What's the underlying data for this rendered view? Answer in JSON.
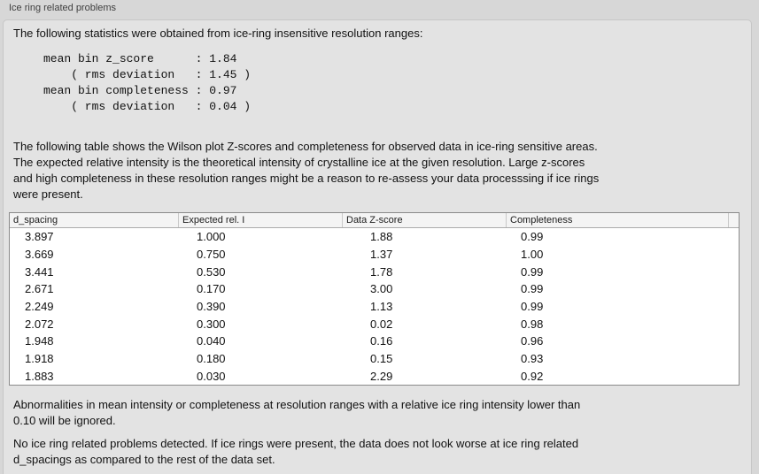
{
  "colors": {
    "outer_bg": "#d7d7d7",
    "panel_bg": "#e3e3e3",
    "panel_border": "#c6c6c6",
    "table_bg": "#ffffff",
    "table_border": "#8a8a8a",
    "table_header_bg": "#f4f4f4",
    "text": "#111111",
    "title_text": "#3f3f3f"
  },
  "groupbox": {
    "title": "Ice ring related problems"
  },
  "intro_text": "The following statistics were obtained from ice-ring insensitive resolution ranges:",
  "stats_block": {
    "lines": [
      "mean bin z_score      : 1.84",
      "    ( rms deviation   : 1.45 )",
      "mean bin completeness : 0.97",
      "    ( rms deviation   : 0.04 )"
    ]
  },
  "description_lines": [
    "The following table shows the Wilson plot Z-scores and completeness for observed data in ice-ring sensitive areas.",
    "The expected relative intensity is the theoretical intensity of crystalline ice at the given resolution. Large z-scores",
    "and high completeness in these resolution ranges might be a reason to re-assess your data processsing if ice rings",
    "were present."
  ],
  "table": {
    "columns": [
      "d_spacing",
      "Expected rel. I",
      "Data Z-score",
      "Completeness"
    ],
    "rows": [
      [
        "3.897",
        "1.000",
        "1.88",
        "0.99"
      ],
      [
        "3.669",
        "0.750",
        "1.37",
        "1.00"
      ],
      [
        "3.441",
        "0.530",
        "1.78",
        "0.99"
      ],
      [
        "2.671",
        "0.170",
        "3.00",
        "0.99"
      ],
      [
        "2.249",
        "0.390",
        "1.13",
        "0.99"
      ],
      [
        "2.072",
        "0.300",
        "0.02",
        "0.98"
      ],
      [
        "1.948",
        "0.040",
        "0.16",
        "0.96"
      ],
      [
        "1.918",
        "0.180",
        "0.15",
        "0.93"
      ],
      [
        "1.883",
        "0.030",
        "2.29",
        "0.92"
      ]
    ]
  },
  "notes_lines": [
    "Abnormalities in mean intensity or completeness at resolution ranges with a relative ice ring intensity lower than",
    "0.10 will be ignored."
  ],
  "conclusion_lines": [
    "No ice ring related problems detected. If ice rings were present, the data does not look worse at ice ring related",
    "d_spacings as compared to the rest of the data set."
  ]
}
